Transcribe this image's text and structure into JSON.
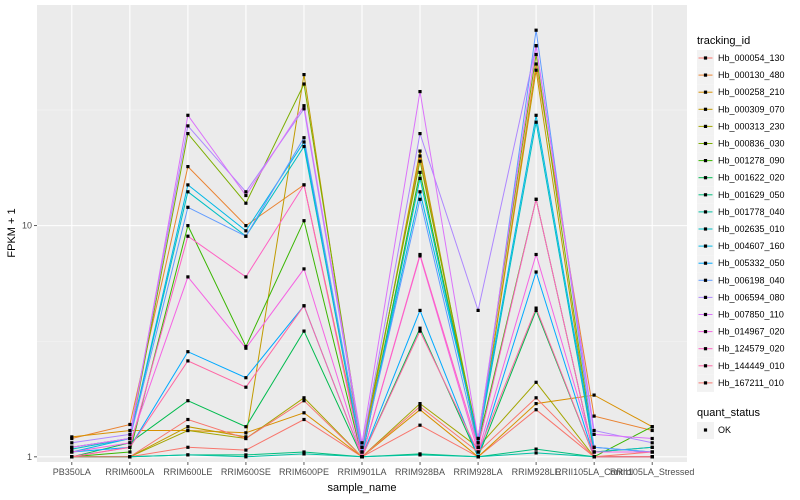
{
  "chart_data": {
    "type": "line",
    "title": "",
    "xlabel": "sample_name",
    "ylabel": "FPKM + 1",
    "y_scale": "log10",
    "ylim": [
      0.95,
      90
    ],
    "y_ticks": [
      1,
      10
    ],
    "y_tick_labels": [
      "1",
      "10"
    ],
    "grid": true,
    "legend_position": "right",
    "categories": [
      "PB350LA",
      "RRIM600LA",
      "RRIM600LE",
      "RRIM600SE",
      "RRIM600PE",
      "RRIM901LA",
      "RRIM928BA",
      "RRIM928LA",
      "RRIM928LE",
      "RRII105LA_Control",
      "RRII105LA_Stressed"
    ],
    "series_legend_title": "tracking_id",
    "series": [
      {
        "name": "Hb_000054_130",
        "color": "#F8766D",
        "values": [
          1.0,
          1.0,
          1.1,
          1.07,
          1.45,
          1.0,
          1.37,
          1.0,
          1.6,
          1.0,
          1.05
        ]
      },
      {
        "name": "Hb_000130_480",
        "color": "#EA8331",
        "values": [
          1.2,
          1.38,
          18,
          10,
          15,
          1.05,
          20,
          1.1,
          50,
          1.5,
          1.3
        ]
      },
      {
        "name": "Hb_000258_210",
        "color": "#D89000",
        "values": [
          1.22,
          1.3,
          1.3,
          1.27,
          1.55,
          1.0,
          1.6,
          1.0,
          1.7,
          1.85,
          1.35
        ]
      },
      {
        "name": "Hb_000309_070",
        "color": "#C09B00",
        "values": [
          1.0,
          1.0,
          1.35,
          1.22,
          45,
          1.0,
          21,
          1.1,
          47,
          1.0,
          1.0
        ]
      },
      {
        "name": "Hb_000313_230",
        "color": "#A3A500",
        "values": [
          1.0,
          1.0,
          1.3,
          1.2,
          1.8,
          1.0,
          1.7,
          1.1,
          2.1,
          1.0,
          1.0
        ]
      },
      {
        "name": "Hb_000836_030",
        "color": "#7CAE00",
        "values": [
          1.1,
          1.2,
          25,
          12.5,
          41,
          1.1,
          19,
          1.2,
          55,
          1.05,
          1.1
        ]
      },
      {
        "name": "Hb_001278_090",
        "color": "#39B600",
        "values": [
          1.0,
          1.05,
          10,
          3,
          10.5,
          1.0,
          17,
          1.15,
          13,
          1.0,
          1.35
        ]
      },
      {
        "name": "Hb_001622_020",
        "color": "#00BB4E",
        "values": [
          1.0,
          1.15,
          1.75,
          1.35,
          3.5,
          1.0,
          3.6,
          1.0,
          4.3,
          1.0,
          1.0
        ]
      },
      {
        "name": "Hb_001629_050",
        "color": "#00BF7D",
        "values": [
          1.0,
          1.0,
          1.02,
          1.02,
          1.05,
          1.0,
          1.03,
          1.0,
          1.08,
          1.0,
          1.0
        ]
      },
      {
        "name": "Hb_001778_040",
        "color": "#00C1A3",
        "values": [
          1.0,
          1.0,
          1.02,
          1.0,
          1.03,
          1.0,
          1.02,
          1.0,
          1.04,
          1.0,
          1.0
        ]
      },
      {
        "name": "Hb_002635_010",
        "color": "#00BFC4",
        "values": [
          1.08,
          1.2,
          14,
          9,
          22,
          1.0,
          16,
          1.15,
          28,
          1.05,
          1.1
        ]
      },
      {
        "name": "Hb_004607_160",
        "color": "#00B8E7",
        "values": [
          1.05,
          1.2,
          15,
          9.5,
          23,
          1.05,
          14,
          1.2,
          30,
          1.1,
          1.05
        ]
      },
      {
        "name": "Hb_005332_050",
        "color": "#00A9FF",
        "values": [
          1.05,
          1.1,
          2.85,
          2.2,
          4.5,
          1.0,
          4.3,
          1.0,
          6.3,
          1.0,
          1.0
        ]
      },
      {
        "name": "Hb_006198_040",
        "color": "#619CFF",
        "values": [
          1.1,
          1.2,
          12,
          9,
          24,
          1.05,
          13,
          1.1,
          70,
          1.1,
          1.05
        ]
      },
      {
        "name": "Hb_006594_080",
        "color": "#AE87FF",
        "values": [
          1.15,
          1.25,
          27,
          14,
          32,
          1.1,
          25,
          4.3,
          60,
          1.3,
          1.15
        ]
      },
      {
        "name": "Hb_007850_110",
        "color": "#DB72FB",
        "values": [
          1.1,
          1.2,
          30,
          13.5,
          33,
          1.15,
          38,
          1.2,
          60,
          1.25,
          1.2
        ]
      },
      {
        "name": "Hb_014967_020",
        "color": "#F564E3",
        "values": [
          1.05,
          1.15,
          6,
          2.95,
          6.5,
          1.0,
          7.4,
          1.05,
          7.5,
          1.05,
          1.05
        ]
      },
      {
        "name": "Hb_124579_020",
        "color": "#FF61C3",
        "values": [
          1.0,
          1.1,
          9,
          6,
          15,
          1.0,
          7.5,
          1.1,
          13,
          1.0,
          1.0
        ]
      },
      {
        "name": "Hb_144449_010",
        "color": "#FF67A4",
        "values": [
          1.0,
          1.1,
          2.6,
          2.0,
          4.5,
          1.0,
          3.5,
          1.05,
          4.4,
          1.0,
          1.0
        ]
      },
      {
        "name": "Hb_167211_010",
        "color": "#F8766D",
        "values": [
          1.0,
          1.0,
          1.45,
          1.2,
          1.75,
          1.0,
          1.65,
          1.05,
          1.8,
          1.0,
          1.0
        ]
      }
    ],
    "shape_legend_title": "quant_status",
    "shape_legend": [
      {
        "label": "OK",
        "shape": "square"
      }
    ]
  }
}
